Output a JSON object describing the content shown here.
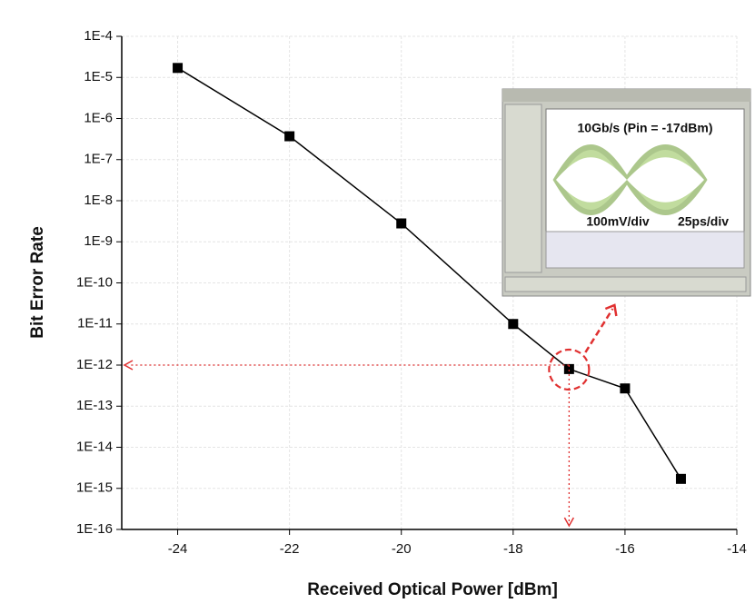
{
  "chart_data": {
    "type": "line",
    "x_label": "Received Optical Power [dBm]",
    "y_label": "Bit Error Rate",
    "x": [
      -24,
      -22,
      -20,
      -18,
      -17,
      -16,
      -15
    ],
    "values": [
      1.7e-05,
      3.7e-07,
      2.8e-09,
      1e-11,
      8e-13,
      2.7e-13,
      1.7e-15
    ],
    "color": "#000000",
    "xlim": [
      -25,
      -14
    ],
    "xticks": [
      -24,
      -22,
      -20,
      -18,
      -16,
      -14
    ],
    "ylim": [
      1e-16,
      0.0001
    ],
    "yscale": "log",
    "yticks": [
      {
        "value": 1e-16,
        "label": "1E-16"
      },
      {
        "value": 1e-15,
        "label": "1E-15"
      },
      {
        "value": 1e-14,
        "label": "1E-14"
      },
      {
        "value": 1e-13,
        "label": "1E-13"
      },
      {
        "value": 1e-12,
        "label": "1E-12"
      },
      {
        "value": 1e-11,
        "label": "1E-11"
      },
      {
        "value": 1e-10,
        "label": "1E-10"
      },
      {
        "value": 1e-09,
        "label": "1E-9"
      },
      {
        "value": 1e-08,
        "label": "1E-8"
      },
      {
        "value": 1e-07,
        "label": "1E-7"
      },
      {
        "value": 1e-06,
        "label": "1E-6"
      },
      {
        "value": 1e-05,
        "label": "1E-5"
      },
      {
        "value": 0.0001,
        "label": "1E-4"
      }
    ],
    "grid": true,
    "guide": {
      "x": -17,
      "y": 1e-12,
      "color": "#e03030"
    },
    "inset": {
      "title": "10Gb/s (Pin = -17dBm)",
      "vertical_scale": "100mV/div",
      "time_scale": "25ps/div"
    }
  }
}
